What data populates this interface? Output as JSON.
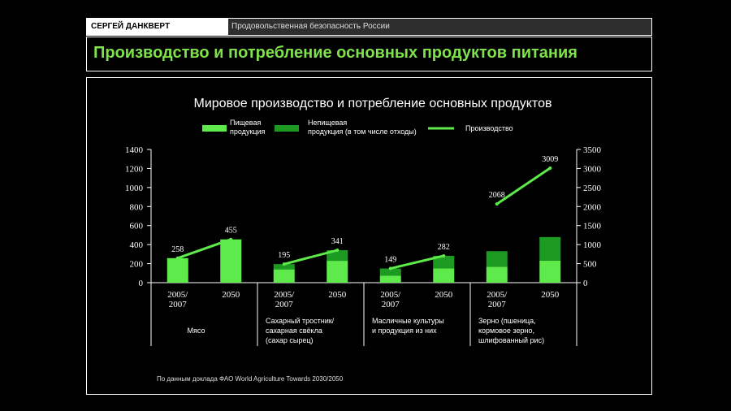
{
  "header": {
    "author": "СЕРГЕЙ ДАНКВЕРТ",
    "topic": "Продовольственная безопасность России"
  },
  "slide_title": "Производство и потребление основных продуктов питания",
  "source_note": "По данным доклада ФАО World Agriculture Towards 2030/2050",
  "colors": {
    "food": "#5dea4a",
    "nonfood": "#1d9a22",
    "production_line": "#5dea4a",
    "title": "#7ee24a"
  },
  "chart_data": {
    "type": "bar",
    "title": "Мировое производство и потребление основных продуктов",
    "legend": {
      "food": "Пищевая продукция",
      "nonfood": "Непищевая продукция (в том числе отходы)",
      "production": "Производство"
    },
    "categories": [
      "2005/2007",
      "2050",
      "2005/2007",
      "2050",
      "2005/2007",
      "2050",
      "2005/2007",
      "2050"
    ],
    "groups": [
      "Мясо",
      "Сахарный тростник/ сахарная свёкла (сахар сырец)",
      "Масличные культуры и продукция из них",
      "Зерно (пшеница, кормовое зерно, шлифованный рис)"
    ],
    "series": [
      {
        "name": "Пищевая продукция",
        "values": [
          258,
          455,
          140,
          230,
          75,
          150,
          420,
          580
        ]
      },
      {
        "name": "Непищевая продукция (в том числе отходы)",
        "values": [
          0,
          0,
          55,
          111,
          74,
          132,
          407,
          619
        ]
      }
    ],
    "production": [
      258,
      455,
      195,
      341,
      149,
      282,
      2068,
      3009
    ],
    "production_labels": [
      "258",
      "455",
      "195",
      "341",
      "149",
      "282",
      "2068",
      "3009"
    ],
    "ylim_left": [
      0,
      1400
    ],
    "yticks_left": [
      0,
      200,
      400,
      600,
      800,
      1000,
      1200,
      1400
    ],
    "ylim_right": [
      0,
      3500
    ],
    "yticks_right": [
      0,
      500,
      1000,
      1500,
      2000,
      2500,
      3000,
      3500
    ],
    "grid": false,
    "legend_position": "top"
  }
}
